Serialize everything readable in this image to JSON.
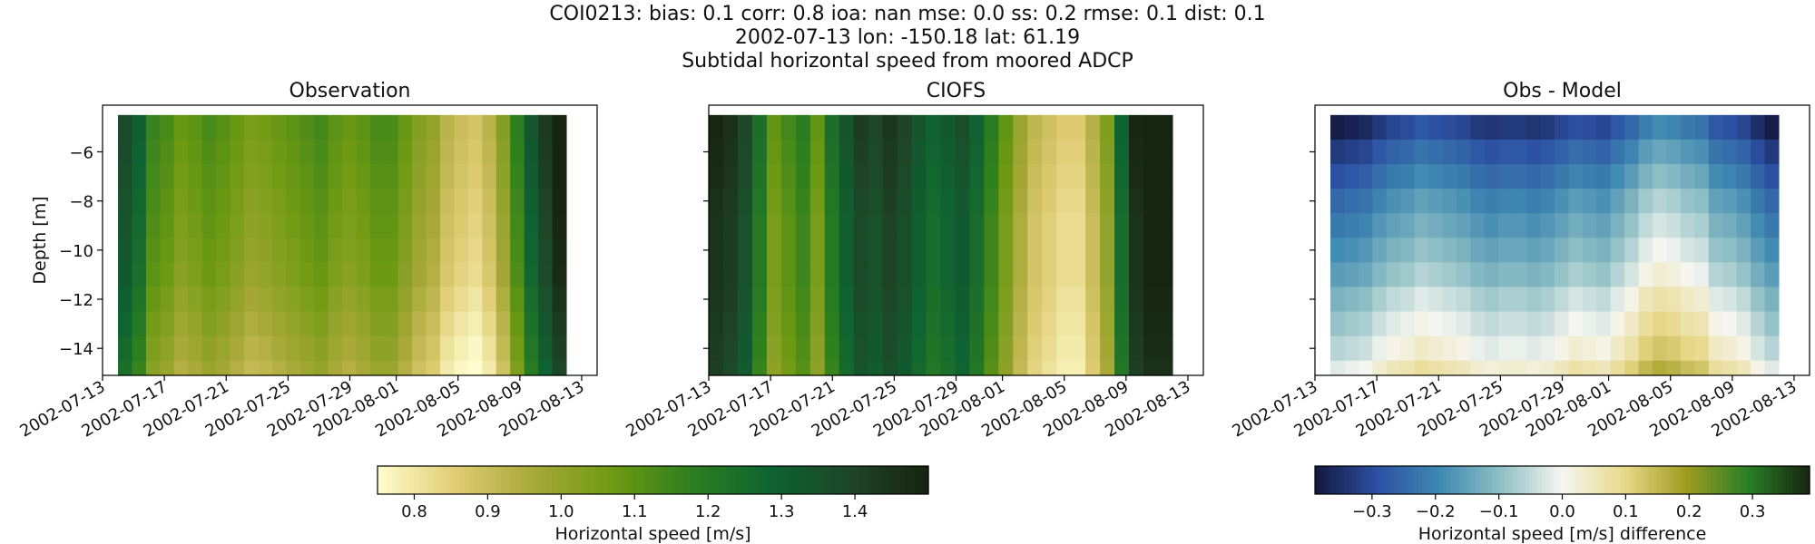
{
  "figure": {
    "title_lines": [
      "COI0213: bias: 0.1  corr: 0.8  ioa: nan  mse: 0.0  ss: 0.2  rmse: 0.1  dist: 0.1",
      "2002-07-13 lon: -150.18 lat: 61.19",
      "Subtidal horizontal speed from moored ADCP"
    ]
  },
  "chart_data": [
    {
      "type": "heatmap",
      "title": "Observation",
      "ylabel": "Depth [m]",
      "xlabel": "",
      "x_ticks": [
        "2002-07-13",
        "2002-07-17",
        "2002-07-21",
        "2002-07-25",
        "2002-07-29",
        "2002-08-01",
        "2002-08-05",
        "2002-08-09",
        "2002-08-13"
      ],
      "y_ticks": [
        -6,
        -8,
        -10,
        -12,
        -14
      ],
      "xlim": [
        "2002-07-13",
        "2002-08-14"
      ],
      "ylim": [
        -15.1,
        -4.1
      ],
      "data_x_range": [
        "2002-07-14",
        "2002-08-12"
      ],
      "depths": [
        -5.0,
        -6.0,
        -7.0,
        -8.0,
        -9.0,
        -10.0,
        -11.0,
        -12.0,
        -13.0,
        -14.0,
        -15.0
      ],
      "time_profile_speed": [
        1.3,
        1.22,
        1.08,
        1.05,
        1.0,
        1.02,
        1.05,
        1.03,
        1.0,
        0.97,
        0.98,
        1.0,
        1.02,
        1.04,
        1.06,
        1.02,
        1.0,
        1.02,
        1.05,
        1.05,
        1.0,
        0.95,
        0.92,
        0.85,
        0.82,
        0.8,
        0.85,
        0.95,
        1.1,
        1.25,
        1.35,
        1.45
      ],
      "depth_adjust": [
        0.08,
        0.07,
        0.06,
        0.05,
        0.04,
        0.03,
        0.02,
        0.0,
        -0.02,
        -0.04,
        -0.06
      ],
      "colormap": "speed",
      "grid": false
    },
    {
      "type": "heatmap",
      "title": "CIOFS",
      "ylabel": "",
      "xlabel": "",
      "x_ticks": [
        "2002-07-13",
        "2002-07-17",
        "2002-07-21",
        "2002-07-25",
        "2002-07-29",
        "2002-08-01",
        "2002-08-05",
        "2002-08-09",
        "2002-08-13"
      ],
      "y_ticks": [
        -6,
        -8,
        -10,
        -12,
        -14
      ],
      "xlim": [
        "2002-07-13",
        "2002-08-14"
      ],
      "ylim": [
        -15.1,
        -4.1
      ],
      "data_x_range": [
        "2002-07-13",
        "2002-08-12"
      ],
      "depths": [
        -5.0,
        -6.0,
        -7.0,
        -8.0,
        -9.0,
        -10.0,
        -11.0,
        -12.0,
        -13.0,
        -14.0,
        -15.0
      ],
      "time_profile_speed": [
        1.45,
        1.42,
        1.35,
        1.2,
        1.05,
        1.1,
        1.15,
        1.05,
        1.2,
        1.3,
        1.38,
        1.35,
        1.4,
        1.36,
        1.3,
        1.25,
        1.28,
        1.32,
        1.25,
        1.15,
        1.05,
        0.95,
        0.88,
        0.85,
        0.82,
        0.82,
        0.9,
        1.0,
        1.25,
        1.45,
        1.5,
        1.5
      ],
      "depth_adjust": [
        0.04,
        0.03,
        0.02,
        0.01,
        0.0,
        0.0,
        0.0,
        -0.01,
        -0.02,
        -0.03,
        -0.04
      ],
      "colormap": "speed",
      "grid": false
    },
    {
      "type": "heatmap",
      "title": "Obs - Model",
      "ylabel": "",
      "xlabel": "",
      "x_ticks": [
        "2002-07-13",
        "2002-07-17",
        "2002-07-21",
        "2002-07-25",
        "2002-07-29",
        "2002-08-01",
        "2002-08-05",
        "2002-08-09",
        "2002-08-13"
      ],
      "y_ticks": [
        -6,
        -8,
        -10,
        -12,
        -14
      ],
      "xlim": [
        "2002-07-13",
        "2002-08-14"
      ],
      "ylim": [
        -15.1,
        -4.1
      ],
      "data_x_range": [
        "2002-07-14",
        "2002-08-12"
      ],
      "depths": [
        -5.0,
        -6.0,
        -7.0,
        -8.0,
        -9.0,
        -10.0,
        -11.0,
        -12.0,
        -13.0,
        -14.0,
        -15.0
      ],
      "time_profile_diff": [
        -0.05,
        -0.04,
        -0.03,
        0.0,
        0.02,
        0.03,
        0.05,
        0.04,
        0.03,
        0.02,
        0.0,
        -0.01,
        0.0,
        0.0,
        -0.01,
        0.0,
        0.02,
        0.04,
        0.03,
        0.02,
        0.05,
        0.08,
        0.12,
        0.14,
        0.13,
        0.11,
        0.1,
        0.05,
        0.04,
        0.02,
        -0.02,
        -0.05
      ],
      "depth_adjust": [
        -0.33,
        -0.28,
        -0.24,
        -0.2,
        -0.17,
        -0.14,
        -0.11,
        -0.07,
        -0.04,
        -0.01,
        0.03
      ],
      "colormap": "delta",
      "grid": false
    }
  ],
  "colorbars": [
    {
      "label": "Horizontal speed [m/s]",
      "range": [
        0.75,
        1.5
      ],
      "ticks": [
        0.8,
        0.9,
        1.0,
        1.1,
        1.2,
        1.3,
        1.4
      ],
      "colormap": "speed"
    },
    {
      "label": "Horizontal speed [m/s] difference",
      "range": [
        -0.39,
        0.39
      ],
      "ticks": [
        -0.3,
        -0.2,
        -0.1,
        0.0,
        0.1,
        0.2,
        0.3
      ],
      "colormap": "delta"
    }
  ],
  "colormaps": {
    "speed": [
      "#fffdcd",
      "#dfcc73",
      "#a7a838",
      "#6d9a12",
      "#2c7e1f",
      "#0e6332",
      "#1e4528",
      "#17240f"
    ],
    "delta": [
      "#13183e",
      "#2c50a3",
      "#3e88b1",
      "#8ebfc4",
      "#f5f6f0",
      "#e8d98a",
      "#9f9c20",
      "#287f25",
      "#17240f"
    ]
  }
}
